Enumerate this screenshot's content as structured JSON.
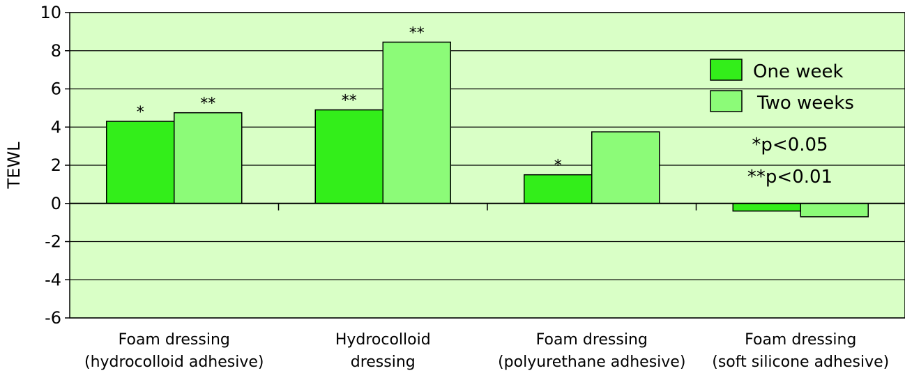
{
  "chart_data": {
    "type": "bar",
    "ylabel": "TEWL",
    "ylim": [
      -6,
      10
    ],
    "yticks": [
      10,
      8,
      6,
      4,
      2,
      0,
      -2,
      -4,
      -6
    ],
    "grid": true,
    "legend_position": "top-right",
    "categories": [
      [
        "Foam dressing",
        "(hydrocolloid adhesive)"
      ],
      [
        "Hydrocolloid",
        "dressing"
      ],
      [
        "Foam dressing",
        "(polyurethane adhesive)"
      ],
      [
        "Foam dressing",
        "(soft silicone adhesive)"
      ]
    ],
    "series": [
      {
        "name": "One week",
        "color": "#33ee1a",
        "values": [
          4.3,
          4.9,
          1.5,
          -0.4
        ],
        "annotations": [
          "*",
          "**",
          "*",
          ""
        ]
      },
      {
        "name": "Two weeks",
        "color": "#8cfb78",
        "values": [
          4.75,
          8.45,
          3.75,
          -0.7
        ],
        "annotations": [
          "**",
          "**",
          "",
          ""
        ]
      }
    ],
    "notes": [
      "*p<0.05",
      "**p<0.01"
    ],
    "colors": {
      "plot_background": "#d9ffc6",
      "bar_stroke": "#000000",
      "grid": "#000000"
    }
  }
}
